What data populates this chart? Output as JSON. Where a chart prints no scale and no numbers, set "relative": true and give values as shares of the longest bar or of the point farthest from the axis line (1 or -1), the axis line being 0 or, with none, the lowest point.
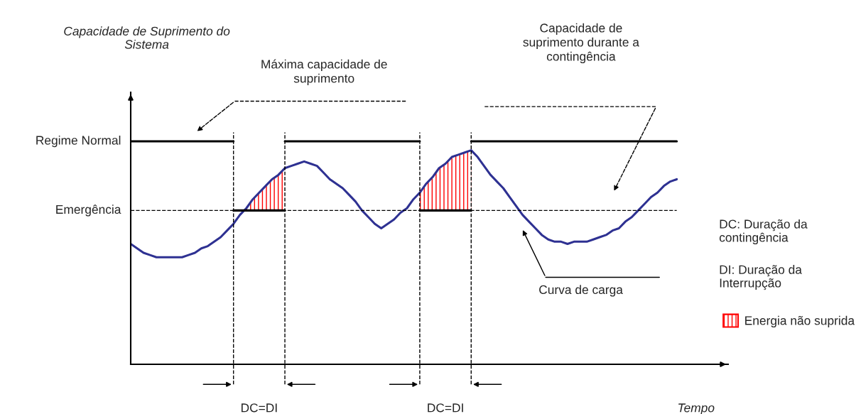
{
  "chart_data": {
    "type": "line",
    "relative": true,
    "xlabel": "Tempo",
    "categories": [
      null,
      null,
      null,
      null,
      null,
      null,
      null,
      null,
      null,
      null,
      null,
      null,
      null,
      null,
      null,
      null,
      null,
      null,
      null,
      null,
      null,
      null,
      null,
      null,
      null,
      null,
      null,
      null,
      null,
      null,
      null,
      null,
      null,
      null,
      null,
      null,
      null,
      null,
      null,
      null,
      null,
      null,
      null,
      null,
      null,
      null,
      null,
      null,
      null,
      null,
      null,
      null,
      null,
      null,
      null,
      null,
      null,
      null,
      null,
      null,
      null,
      null,
      null,
      null,
      null,
      null,
      null,
      null,
      null,
      null,
      null,
      null,
      null,
      null,
      null,
      null,
      null,
      null,
      null,
      null,
      null,
      null,
      null,
      null,
      null,
      null
    ],
    "series": [
      {
        "color": "#2e3192",
        "values": [
          0.54,
          0.52,
          0.5,
          0.49,
          0.48,
          0.48,
          0.48,
          0.48,
          0.48,
          0.49,
          0.5,
          0.52,
          0.53,
          0.55,
          0.57,
          0.6,
          0.63,
          0.67,
          0.7,
          0.74,
          0.77,
          0.8,
          0.83,
          0.85,
          0.88,
          0.89,
          0.9,
          0.91,
          0.9,
          0.89,
          0.86,
          0.83,
          0.81,
          0.79,
          0.76,
          0.73,
          0.69,
          0.66,
          0.63,
          0.61,
          0.63,
          0.65,
          0.68,
          0.7,
          0.74,
          0.77,
          0.81,
          0.84,
          0.88,
          0.9,
          0.93,
          0.94,
          0.95,
          0.96,
          0.93,
          0.89,
          0.85,
          0.82,
          0.79,
          0.75,
          0.71,
          0.67,
          0.64,
          0.61,
          0.58,
          0.56,
          0.55,
          0.55,
          0.54,
          0.55,
          0.55,
          0.55,
          0.56,
          0.57,
          0.58,
          0.6,
          0.61,
          0.64,
          0.66,
          0.69,
          0.72,
          0.75,
          0.77,
          0.8,
          0.82,
          0.83
        ]
      },
      {
        "color": "#000000",
        "values": [
          1,
          1,
          1,
          1,
          1,
          1,
          1,
          1,
          1,
          1,
          1,
          1,
          1,
          1,
          1,
          1,
          1,
          null,
          null,
          null,
          null,
          null,
          null,
          null,
          1,
          1,
          1,
          1,
          1,
          1,
          1,
          1,
          1,
          1,
          1,
          1,
          1,
          1,
          1,
          1,
          1,
          1,
          1,
          1,
          1,
          1,
          null,
          null,
          null,
          null,
          null,
          null,
          null,
          1,
          1,
          1,
          1,
          1,
          1,
          1,
          1,
          1,
          1,
          1,
          1,
          1,
          1,
          1,
          1,
          1,
          1,
          1,
          1,
          1,
          1,
          1,
          1,
          1,
          1,
          1,
          1,
          1,
          1,
          1,
          1,
          1
        ]
      },
      {
        "color": "#000000",
        "values": [
          null,
          null,
          null,
          null,
          null,
          null,
          null,
          null,
          null,
          null,
          null,
          null,
          null,
          null,
          null,
          null,
          0.69,
          0.69,
          0.69,
          0.69,
          0.69,
          0.69,
          0.69,
          0.69,
          0.69,
          null,
          null,
          null,
          null,
          null,
          null,
          null,
          null,
          null,
          null,
          null,
          null,
          null,
          null,
          null,
          null,
          null,
          null,
          null,
          null,
          0.69,
          0.69,
          0.69,
          0.69,
          0.69,
          0.69,
          0.69,
          0.69,
          0.69,
          null,
          null,
          null,
          null,
          null,
          null,
          null,
          null,
          null,
          null,
          null,
          null,
          null,
          null,
          null,
          null,
          null,
          null,
          null,
          null,
          null,
          null,
          null,
          null,
          null,
          null,
          null,
          null,
          null,
          null,
          null,
          null
        ]
      },
      {
        "type": "area",
        "name": "Energia não suprida",
        "color": "#ff0000",
        "values": [
          null,
          null,
          null,
          null,
          null,
          null,
          null,
          null,
          null,
          null,
          null,
          null,
          null,
          null,
          null,
          null,
          null,
          null,
          0.7,
          0.74,
          0.77,
          0.8,
          0.83,
          0.85,
          0.88,
          null,
          null,
          null,
          null,
          null,
          null,
          null,
          null,
          null,
          null,
          null,
          null,
          null,
          null,
          null,
          null,
          null,
          null,
          null,
          null,
          0.77,
          0.81,
          0.84,
          0.88,
          0.9,
          0.93,
          0.94,
          0.95,
          0.96,
          null,
          null,
          null,
          null,
          null,
          null,
          null,
          null,
          null,
          null,
          null,
          null,
          null,
          null,
          null,
          null,
          null,
          null,
          null,
          null,
          null,
          null,
          null,
          null,
          null,
          null,
          null,
          null,
          null,
          null,
          null,
          null
        ]
      }
    ],
    "ref_lines": [
      {
        "axis": "y",
        "value": 0.69,
        "label": "Emergência",
        "line_style": "dashed",
        "color": "#000000"
      }
    ],
    "annotations": [
      "Capacidade de Suprimento do Sistema",
      "Regime Normal",
      "Máxima capacidade de suprimento",
      "Capacidade de suprimento durante a contingência",
      "Curva de carga",
      "DC: Duração da contingência",
      "DI: Duração da Interrupção",
      "DC=DI",
      "DC=DI"
    ],
    "legend": "right",
    "line_style": "solid",
    "marker": "none"
  }
}
